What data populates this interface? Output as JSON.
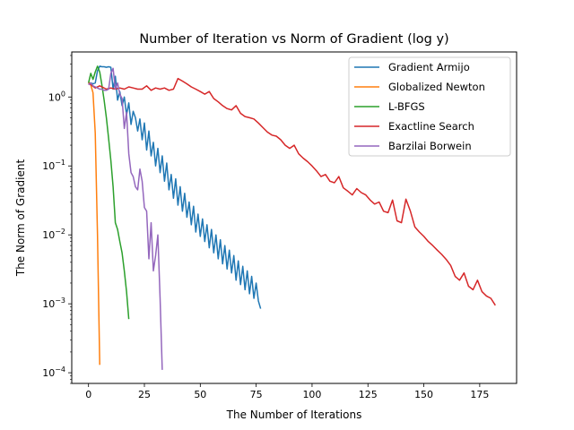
{
  "chart_data": {
    "type": "line",
    "title": "Number of Iteration vs Norm of Gradient (log y)",
    "xlabel": "The Number of Iterations",
    "ylabel": "The Norm of Gradient",
    "xlim": [
      -7.5,
      191.5
    ],
    "ylim": [
      7e-05,
      4.5
    ],
    "yscale": "log",
    "xticks": [
      0,
      25,
      50,
      75,
      100,
      125,
      150,
      175
    ],
    "yticks": [
      {
        "value": 0.0001,
        "base": "10",
        "exp": "−4"
      },
      {
        "value": 0.001,
        "base": "10",
        "exp": "−3"
      },
      {
        "value": 0.01,
        "base": "10",
        "exp": "−2"
      },
      {
        "value": 0.1,
        "base": "10",
        "exp": "−1"
      },
      {
        "value": 1,
        "base": "10",
        "exp": "0"
      }
    ],
    "grid": false,
    "legend_position": "top-right",
    "series": [
      {
        "name": "Gradient Armijo",
        "color": "#1f77b4",
        "x": [
          0,
          1,
          2,
          3,
          4,
          5,
          6,
          7,
          8,
          9,
          10,
          11,
          12,
          13,
          14,
          15,
          16,
          17,
          18,
          19,
          20,
          21,
          22,
          23,
          24,
          25,
          26,
          27,
          28,
          29,
          30,
          31,
          32,
          33,
          34,
          35,
          36,
          37,
          38,
          39,
          40,
          41,
          42,
          43,
          44,
          45,
          46,
          47,
          48,
          49,
          50,
          51,
          52,
          53,
          54,
          55,
          56,
          57,
          58,
          59,
          60,
          61,
          62,
          63,
          64,
          65,
          66,
          67,
          68,
          69,
          70,
          71,
          72,
          73,
          74,
          75,
          76,
          77
        ],
        "y": [
          1.6,
          1.6,
          1.55,
          1.6,
          2.4,
          2.8,
          2.75,
          2.75,
          2.7,
          2.75,
          2.7,
          1.3,
          2.0,
          0.9,
          1.2,
          0.75,
          1.0,
          0.55,
          0.82,
          0.4,
          0.62,
          0.5,
          0.32,
          0.48,
          0.24,
          0.42,
          0.17,
          0.32,
          0.14,
          0.22,
          0.1,
          0.18,
          0.08,
          0.14,
          0.06,
          0.11,
          0.045,
          0.075,
          0.034,
          0.065,
          0.027,
          0.05,
          0.022,
          0.04,
          0.018,
          0.03,
          0.014,
          0.026,
          0.011,
          0.02,
          0.0095,
          0.017,
          0.008,
          0.014,
          0.0065,
          0.012,
          0.0055,
          0.01,
          0.0045,
          0.0085,
          0.0038,
          0.007,
          0.0032,
          0.006,
          0.0028,
          0.005,
          0.0022,
          0.0042,
          0.0019,
          0.0035,
          0.0016,
          0.003,
          0.0014,
          0.0025,
          0.0012,
          0.002,
          0.0011,
          0.00085
        ]
      },
      {
        "name": "Globalized Newton",
        "color": "#ff7f0e",
        "x": [
          0,
          1,
          2,
          3,
          4,
          5
        ],
        "y": [
          1.65,
          1.5,
          1.15,
          0.3,
          0.01,
          0.00013
        ]
      },
      {
        "name": "L-BFGS",
        "color": "#2ca02c",
        "x": [
          0,
          1,
          2,
          3,
          4,
          5,
          6,
          7,
          8,
          9,
          10,
          11,
          12,
          13,
          14,
          15,
          16,
          17,
          18
        ],
        "y": [
          1.6,
          2.2,
          1.8,
          2.3,
          2.8,
          2.3,
          1.5,
          0.9,
          0.5,
          0.25,
          0.12,
          0.05,
          0.015,
          0.012,
          0.008,
          0.0055,
          0.003,
          0.0015,
          0.0006
        ]
      },
      {
        "name": "Exactline Search",
        "color": "#d62728",
        "x": [
          0,
          3,
          5,
          8,
          10,
          12,
          14,
          16,
          18,
          20,
          22,
          24,
          26,
          28,
          30,
          32,
          34,
          36,
          38,
          40,
          42,
          44,
          46,
          48,
          50,
          52,
          54,
          56,
          58,
          60,
          62,
          64,
          66,
          68,
          70,
          72,
          74,
          76,
          78,
          80,
          82,
          84,
          86,
          88,
          90,
          92,
          94,
          96,
          98,
          100,
          102,
          104,
          106,
          108,
          110,
          112,
          114,
          116,
          118,
          120,
          122,
          124,
          126,
          128,
          130,
          132,
          134,
          136,
          138,
          140,
          142,
          144,
          146,
          148,
          150,
          152,
          154,
          156,
          158,
          160,
          162,
          164,
          166,
          168,
          170,
          172,
          174,
          176,
          178,
          180,
          182
        ],
        "y": [
          1.6,
          1.35,
          1.45,
          1.3,
          1.35,
          1.3,
          1.35,
          1.3,
          1.4,
          1.35,
          1.3,
          1.3,
          1.45,
          1.25,
          1.35,
          1.3,
          1.35,
          1.25,
          1.3,
          1.85,
          1.7,
          1.55,
          1.4,
          1.3,
          1.2,
          1.1,
          1.2,
          0.95,
          0.85,
          0.75,
          0.68,
          0.65,
          0.75,
          0.58,
          0.52,
          0.5,
          0.48,
          0.42,
          0.36,
          0.31,
          0.28,
          0.27,
          0.24,
          0.2,
          0.18,
          0.2,
          0.15,
          0.13,
          0.115,
          0.1,
          0.085,
          0.07,
          0.075,
          0.06,
          0.057,
          0.07,
          0.048,
          0.043,
          0.038,
          0.047,
          0.041,
          0.038,
          0.032,
          0.028,
          0.03,
          0.022,
          0.021,
          0.032,
          0.016,
          0.015,
          0.033,
          0.022,
          0.013,
          0.011,
          0.0095,
          0.008,
          0.007,
          0.006,
          0.0052,
          0.0044,
          0.0036,
          0.0025,
          0.0022,
          0.0028,
          0.0018,
          0.0016,
          0.0022,
          0.0015,
          0.0013,
          0.0012,
          0.00095
        ]
      },
      {
        "name": "Barzilai Borwein",
        "color": "#9467bd",
        "x": [
          0,
          1,
          2,
          3,
          4,
          5,
          6,
          7,
          8,
          9,
          10,
          11,
          12,
          13,
          14,
          15,
          16,
          17,
          18,
          19,
          20,
          21,
          22,
          23,
          24,
          25,
          26,
          27,
          28,
          29,
          30,
          31,
          32,
          33
        ],
        "y": [
          1.5,
          1.6,
          1.45,
          1.4,
          1.35,
          1.3,
          1.3,
          1.25,
          1.25,
          1.3,
          2.2,
          2.6,
          1.3,
          1.6,
          1.1,
          0.95,
          0.35,
          0.6,
          0.15,
          0.08,
          0.07,
          0.05,
          0.045,
          0.09,
          0.06,
          0.025,
          0.022,
          0.0045,
          0.015,
          0.003,
          0.005,
          0.01,
          0.0012,
          0.00011
        ]
      }
    ]
  }
}
